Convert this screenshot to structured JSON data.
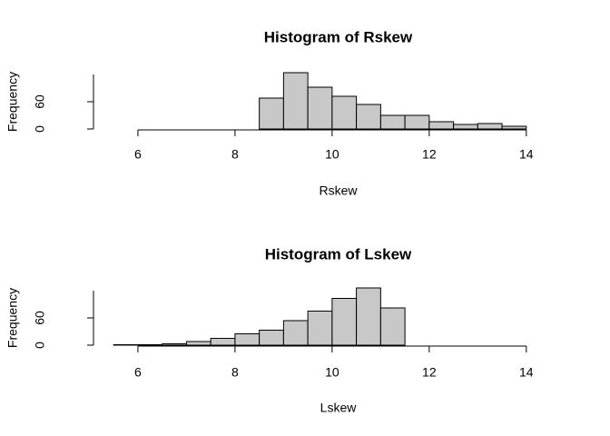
{
  "chart_data": [
    {
      "type": "histogram",
      "title": "Histogram of Rskew",
      "xlabel": "Rskew",
      "ylabel": "Frequency",
      "bins": [
        8.5,
        9,
        9.5,
        10,
        10.5,
        11,
        11.5,
        12,
        12.5,
        13,
        13.5,
        14
      ],
      "counts": [
        68,
        124,
        92,
        72,
        54,
        30,
        30,
        16,
        10,
        12,
        6
      ],
      "color": "#c8c8c8",
      "xlim": [
        5.16,
        14.34
      ],
      "ylim": [
        0,
        120
      ],
      "xticks": [
        6,
        8,
        10,
        12,
        14
      ],
      "yticks": [
        0,
        60
      ]
    },
    {
      "type": "histogram",
      "title": "Histogram of Lskew",
      "xlabel": "Lskew",
      "ylabel": "Frequency",
      "bins": [
        5.5,
        6,
        6.5,
        7,
        7.5,
        8,
        8.5,
        9,
        9.5,
        10,
        10.5,
        11,
        11.5
      ],
      "counts": [
        1,
        1,
        3,
        8,
        15,
        25,
        33,
        54,
        75,
        103,
        126,
        82
      ],
      "color": "#c8c8c8",
      "xlim": [
        5.16,
        14.34
      ],
      "ylim": [
        0,
        120
      ],
      "xticks": [
        6,
        8,
        10,
        12,
        14
      ],
      "yticks": [
        0,
        60
      ]
    }
  ]
}
